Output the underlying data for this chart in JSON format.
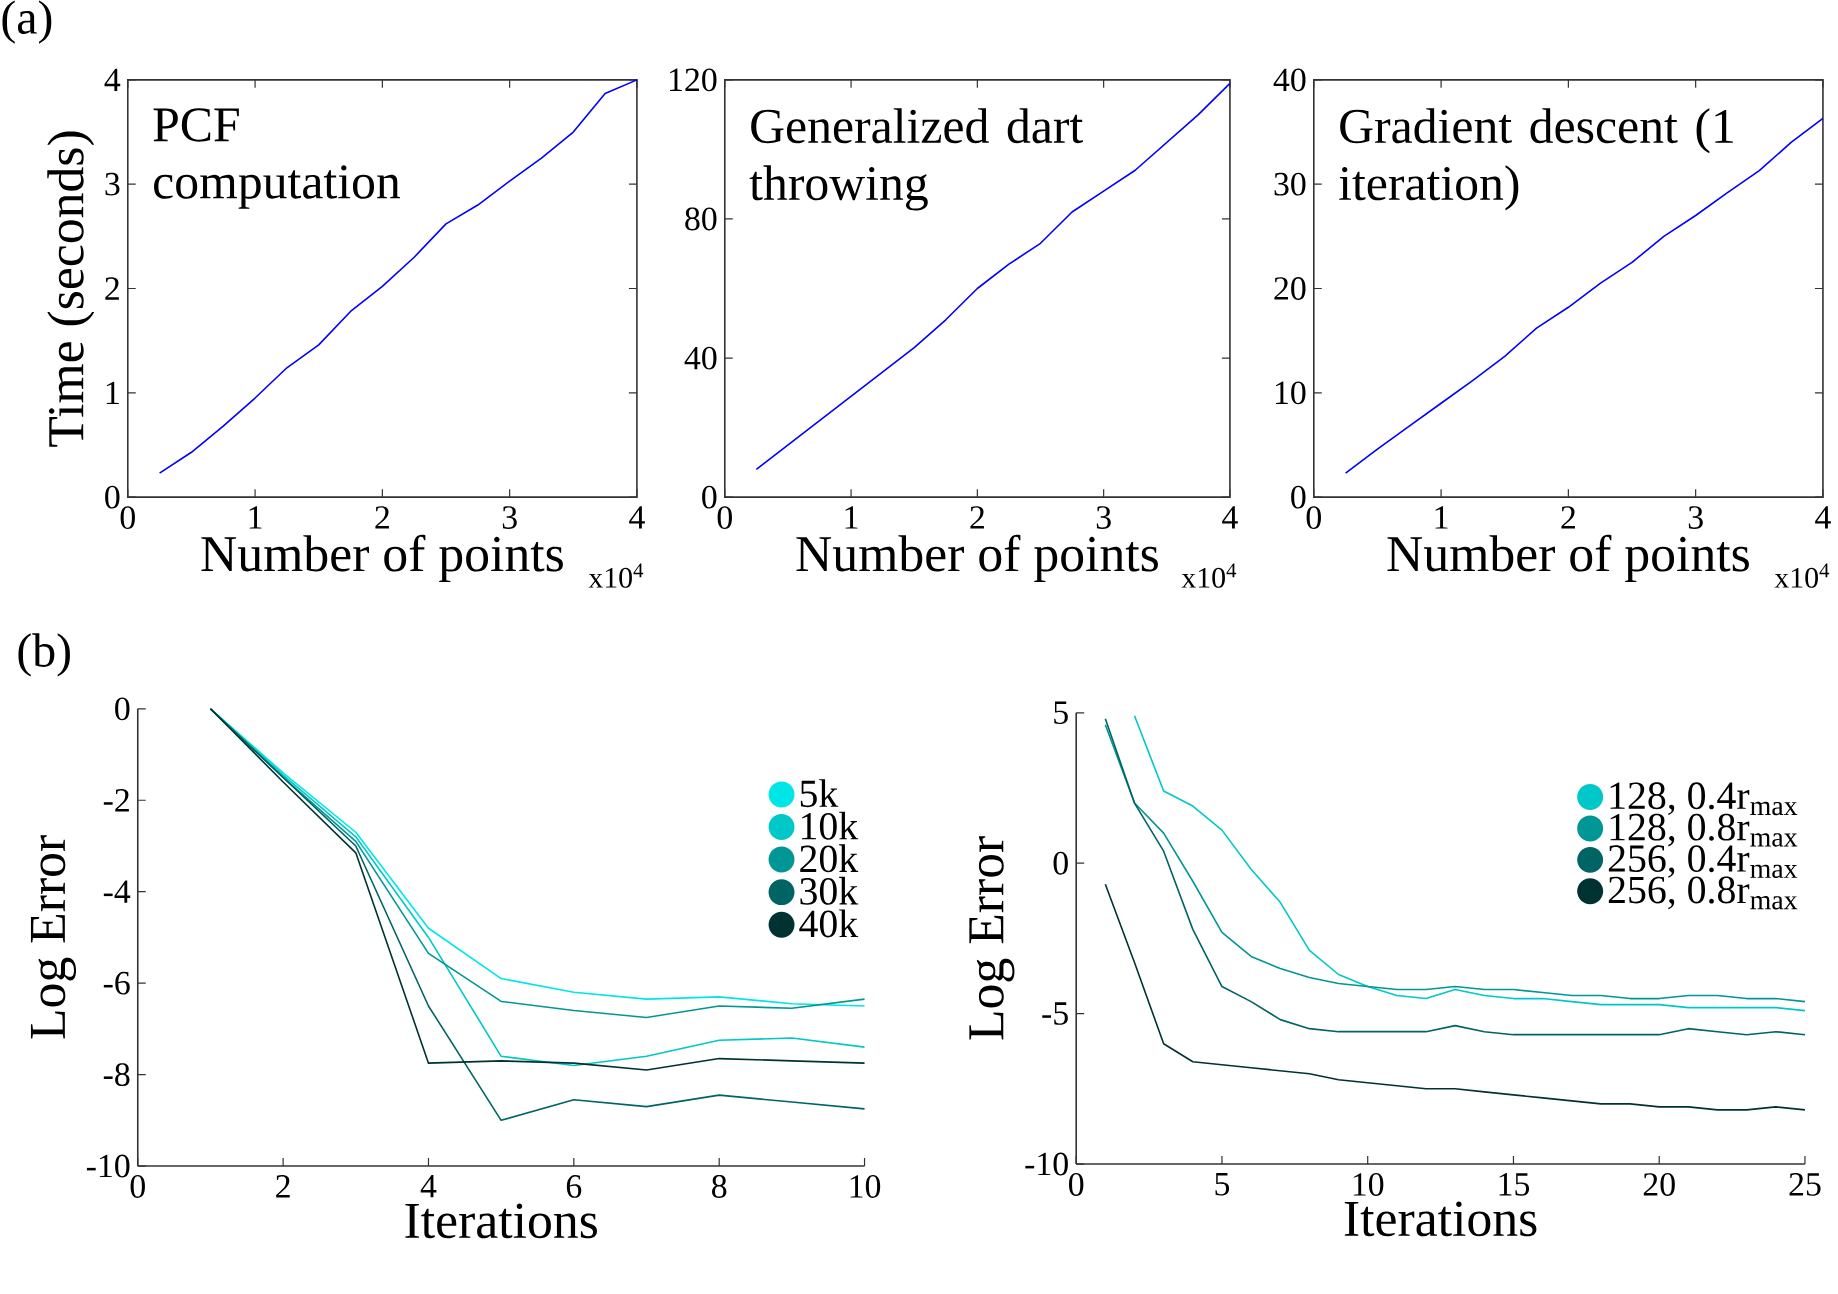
{
  "chart_data": [
    {
      "type": "line",
      "title": "PCF computation",
      "xlabel": "Number of points",
      "ylabel": "Time (seconds)",
      "annotations": [
        "(a)",
        "x10$^{4}$"
      ],
      "x": [
        0.25,
        0.5,
        0.75,
        1,
        1.25,
        1.5,
        1.75,
        2,
        2.25,
        2.5,
        2.75,
        3,
        3.25,
        3.5,
        3.75,
        4
      ],
      "xlim": [
        0,
        4
      ],
      "xticks": [
        0,
        1,
        2,
        3,
        4
      ],
      "ylim": [
        0,
        4
      ],
      "yticks": [
        0,
        1,
        2,
        3,
        4
      ],
      "series": [
        {
          "color": "#0000ff",
          "values": [
            0.23,
            0.43,
            0.68,
            0.95,
            1.24,
            1.46,
            1.78,
            2.02,
            2.3,
            2.62,
            2.8,
            3.03,
            3.25,
            3.5,
            3.87,
            4.0
          ]
        }
      ]
    },
    {
      "type": "line",
      "title": "Generalized dart throwing",
      "xlabel": "Number of points",
      "annotations": [
        "x10$^{4}$"
      ],
      "x": [
        0.25,
        0.5,
        0.75,
        1,
        1.25,
        1.5,
        1.75,
        2,
        2.25,
        2.5,
        2.75,
        3,
        3.25,
        3.5,
        3.75,
        4
      ],
      "xlim": [
        0,
        4
      ],
      "xticks": [
        0,
        1,
        2,
        3,
        4
      ],
      "ylim": [
        0,
        120
      ],
      "yticks": [
        0,
        40,
        80,
        120
      ],
      "series": [
        {
          "color": "#0000ff",
          "values": [
            8,
            15,
            22,
            29,
            36,
            43,
            51,
            60,
            67,
            73,
            82,
            88,
            94,
            102,
            110,
            119
          ]
        }
      ]
    },
    {
      "type": "line",
      "title": "Gradient descent (1 iteration)",
      "xlabel": "Number of points",
      "annotations": [
        "x10$^{4}$"
      ],
      "x": [
        0.25,
        0.5,
        0.75,
        1,
        1.25,
        1.5,
        1.75,
        2,
        2.25,
        2.5,
        2.75,
        3,
        3.25,
        3.5,
        3.75,
        4
      ],
      "xlim": [
        0,
        4
      ],
      "xticks": [
        0,
        1,
        2,
        3,
        4
      ],
      "ylim": [
        0,
        40
      ],
      "yticks": [
        0,
        10,
        20,
        30,
        40
      ],
      "series": [
        {
          "color": "#0000ff",
          "values": [
            2.3,
            4.6,
            6.8,
            9.0,
            11.2,
            13.5,
            16.2,
            18.2,
            20.5,
            22.5,
            25.0,
            27.0,
            29.2,
            31.3,
            34.0,
            36.3
          ]
        }
      ]
    },
    {
      "type": "line",
      "xlabel": "Iterations",
      "ylabel": "Log Error",
      "annotations": [
        "(b)"
      ],
      "legend": "top right",
      "x": [
        1,
        2,
        3,
        4,
        5,
        6,
        7,
        8,
        9,
        10
      ],
      "xlim": [
        0,
        10
      ],
      "xticks": [
        0,
        2,
        4,
        6,
        8,
        10
      ],
      "ylim": [
        -10,
        0
      ],
      "yticks": [
        -10,
        -8,
        -6,
        -4,
        -2,
        0
      ],
      "series": [
        {
          "name": "5k",
          "color": "#00e6e6",
          "values": [
            0,
            -1.4,
            -2.7,
            -4.8,
            -5.9,
            -6.2,
            -6.35,
            -6.3,
            -6.45,
            -6.5
          ]
        },
        {
          "name": "10k",
          "color": "#00c8c8",
          "values": [
            0,
            -1.45,
            -2.8,
            -5.0,
            -7.6,
            -7.8,
            -7.6,
            -7.25,
            -7.2,
            -7.4
          ]
        },
        {
          "name": "20k",
          "color": "#009696",
          "values": [
            0,
            -1.5,
            -2.9,
            -5.35,
            -6.4,
            -6.6,
            -6.75,
            -6.5,
            -6.55,
            -6.35
          ]
        },
        {
          "name": "30k",
          "color": "#006464",
          "values": [
            0,
            -1.5,
            -3.0,
            -6.5,
            -9.0,
            -8.55,
            -8.7,
            -8.45,
            -8.6,
            -8.75
          ]
        },
        {
          "name": "40k",
          "color": "#003232",
          "values": [
            0,
            -1.6,
            -3.15,
            -7.75,
            -7.7,
            -7.75,
            -7.9,
            -7.65,
            -7.7,
            -7.75
          ]
        }
      ]
    },
    {
      "type": "line",
      "xlabel": "Iterations",
      "ylabel": "Log Error",
      "legend": "top right",
      "x": [
        1,
        2,
        3,
        4,
        5,
        6,
        7,
        8,
        9,
        10,
        11,
        12,
        13,
        14,
        15,
        16,
        17,
        18,
        19,
        20,
        21,
        22,
        23,
        24,
        25
      ],
      "xlim": [
        0,
        25
      ],
      "xticks": [
        0,
        5,
        10,
        15,
        20,
        25
      ],
      "ylim": [
        -10,
        5
      ],
      "yticks": [
        -10,
        -5,
        0,
        5
      ],
      "series": [
        {
          "name": "128, 0.4r$_{max}$",
          "color": "#00c8c8",
          "values": [
            null,
            4.9,
            2.4,
            1.9,
            1.1,
            -0.2,
            -1.3,
            -2.9,
            -3.7,
            -4.1,
            -4.4,
            -4.5,
            -4.2,
            -4.4,
            -4.5,
            -4.5,
            -4.6,
            -4.7,
            -4.7,
            -4.7,
            -4.8,
            -4.8,
            -4.8,
            -4.8,
            -4.9
          ]
        },
        {
          "name": "128, 0.8r$_{max}$",
          "color": "#009696",
          "values": [
            4.6,
            2.0,
            1.0,
            -0.6,
            -2.3,
            -3.1,
            -3.5,
            -3.8,
            -4.0,
            -4.1,
            -4.2,
            -4.2,
            -4.1,
            -4.2,
            -4.2,
            -4.3,
            -4.4,
            -4.4,
            -4.5,
            -4.5,
            -4.4,
            -4.4,
            -4.5,
            -4.5,
            -4.6
          ]
        },
        {
          "name": "256, 0.4r$_{max}$",
          "color": "#006464",
          "values": [
            4.8,
            2.0,
            0.4,
            -2.2,
            -4.1,
            -4.6,
            -5.2,
            -5.5,
            -5.6,
            -5.6,
            -5.6,
            -5.6,
            -5.4,
            -5.6,
            -5.7,
            -5.7,
            -5.7,
            -5.7,
            -5.7,
            -5.7,
            -5.5,
            -5.6,
            -5.7,
            -5.6,
            -5.7
          ]
        },
        {
          "name": "256, 0.8r$_{max}$",
          "color": "#003232",
          "values": [
            -0.7,
            -3.3,
            -6.0,
            -6.6,
            -6.7,
            -6.8,
            -6.9,
            -7.0,
            -7.2,
            -7.3,
            -7.4,
            -7.5,
            -7.5,
            -7.6,
            -7.7,
            -7.8,
            -7.9,
            -8.0,
            -8.0,
            -8.1,
            -8.1,
            -8.2,
            -8.2,
            -8.1,
            -8.2
          ]
        }
      ]
    }
  ]
}
